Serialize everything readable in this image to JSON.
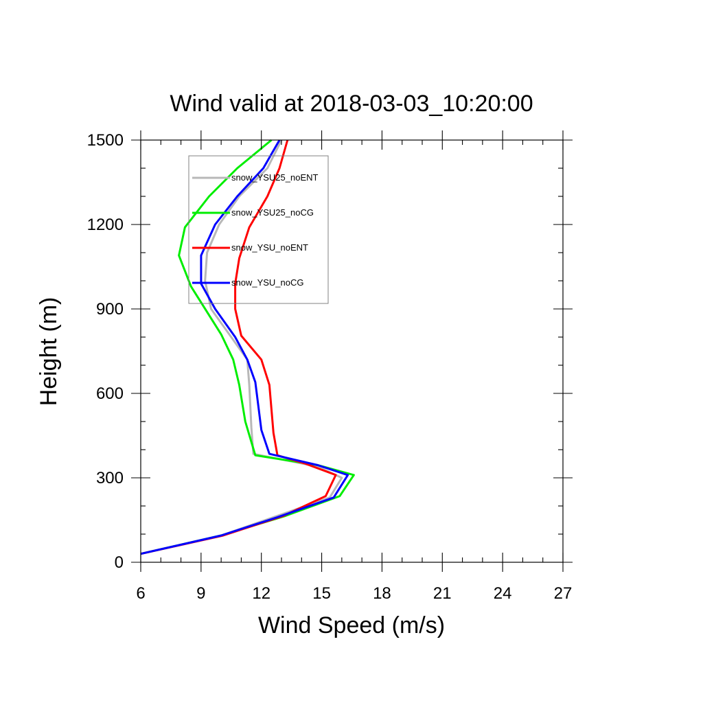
{
  "chart_data": {
    "type": "line",
    "title": "Wind valid at 2018-03-03_10:20:00",
    "xlabel": "Wind Speed (m/s)",
    "ylabel": "Height (m)",
    "xlim": [
      6,
      27
    ],
    "ylim": [
      0,
      1500
    ],
    "xticks": [
      6,
      9,
      12,
      15,
      18,
      21,
      24,
      27
    ],
    "yticks": [
      0,
      300,
      600,
      900,
      1200,
      1500
    ],
    "x_minor_step": 1,
    "y_minor_step": 100,
    "grid": false,
    "legend_placement": "top-left",
    "series": [
      {
        "name": "snow_YSU25_noENT",
        "color": "#b8b8b8",
        "points": [
          [
            6.0,
            30
          ],
          [
            10.0,
            95
          ],
          [
            12.6,
            160
          ],
          [
            15.4,
            230
          ],
          [
            16.0,
            300
          ],
          [
            14.8,
            340
          ],
          [
            11.6,
            385
          ],
          [
            11.5,
            480
          ],
          [
            11.4,
            630
          ],
          [
            11.3,
            720
          ],
          [
            10.5,
            800
          ],
          [
            9.5,
            900
          ],
          [
            9.2,
            1000
          ],
          [
            9.3,
            1100
          ],
          [
            9.9,
            1200
          ],
          [
            10.9,
            1300
          ],
          [
            12.3,
            1400
          ],
          [
            13.0,
            1500
          ]
        ]
      },
      {
        "name": "snow_YSU25_noCG",
        "color": "#00ee00",
        "points": [
          [
            6.0,
            30
          ],
          [
            10.0,
            95
          ],
          [
            13.2,
            165
          ],
          [
            15.9,
            235
          ],
          [
            16.6,
            310
          ],
          [
            14.8,
            345
          ],
          [
            11.7,
            380
          ],
          [
            11.2,
            500
          ],
          [
            10.9,
            630
          ],
          [
            10.6,
            720
          ],
          [
            10.0,
            810
          ],
          [
            8.5,
            980
          ],
          [
            7.9,
            1090
          ],
          [
            8.2,
            1190
          ],
          [
            9.4,
            1300
          ],
          [
            10.8,
            1400
          ],
          [
            12.5,
            1500
          ]
        ]
      },
      {
        "name": "snow_YSU_noENT",
        "color": "#ff0000",
        "points": [
          [
            6.0,
            30
          ],
          [
            10.1,
            95
          ],
          [
            13.1,
            165
          ],
          [
            15.2,
            235
          ],
          [
            15.7,
            310
          ],
          [
            14.2,
            350
          ],
          [
            12.8,
            380
          ],
          [
            12.6,
            460
          ],
          [
            12.4,
            630
          ],
          [
            12.0,
            720
          ],
          [
            11.0,
            805
          ],
          [
            10.7,
            900
          ],
          [
            10.7,
            990
          ],
          [
            10.9,
            1080
          ],
          [
            11.4,
            1190
          ],
          [
            12.3,
            1300
          ],
          [
            12.9,
            1400
          ],
          [
            13.3,
            1500
          ]
        ]
      },
      {
        "name": "snow_YSU_noCG",
        "color": "#0000ff",
        "points": [
          [
            6.0,
            30
          ],
          [
            10.0,
            95
          ],
          [
            12.8,
            160
          ],
          [
            15.6,
            230
          ],
          [
            16.3,
            310
          ],
          [
            14.8,
            345
          ],
          [
            12.4,
            385
          ],
          [
            12.0,
            470
          ],
          [
            11.7,
            640
          ],
          [
            11.3,
            720
          ],
          [
            10.7,
            800
          ],
          [
            9.7,
            900
          ],
          [
            9.0,
            990
          ],
          [
            9.0,
            1090
          ],
          [
            9.7,
            1200
          ],
          [
            10.8,
            1300
          ],
          [
            12.1,
            1400
          ],
          [
            12.9,
            1500
          ]
        ]
      }
    ]
  }
}
